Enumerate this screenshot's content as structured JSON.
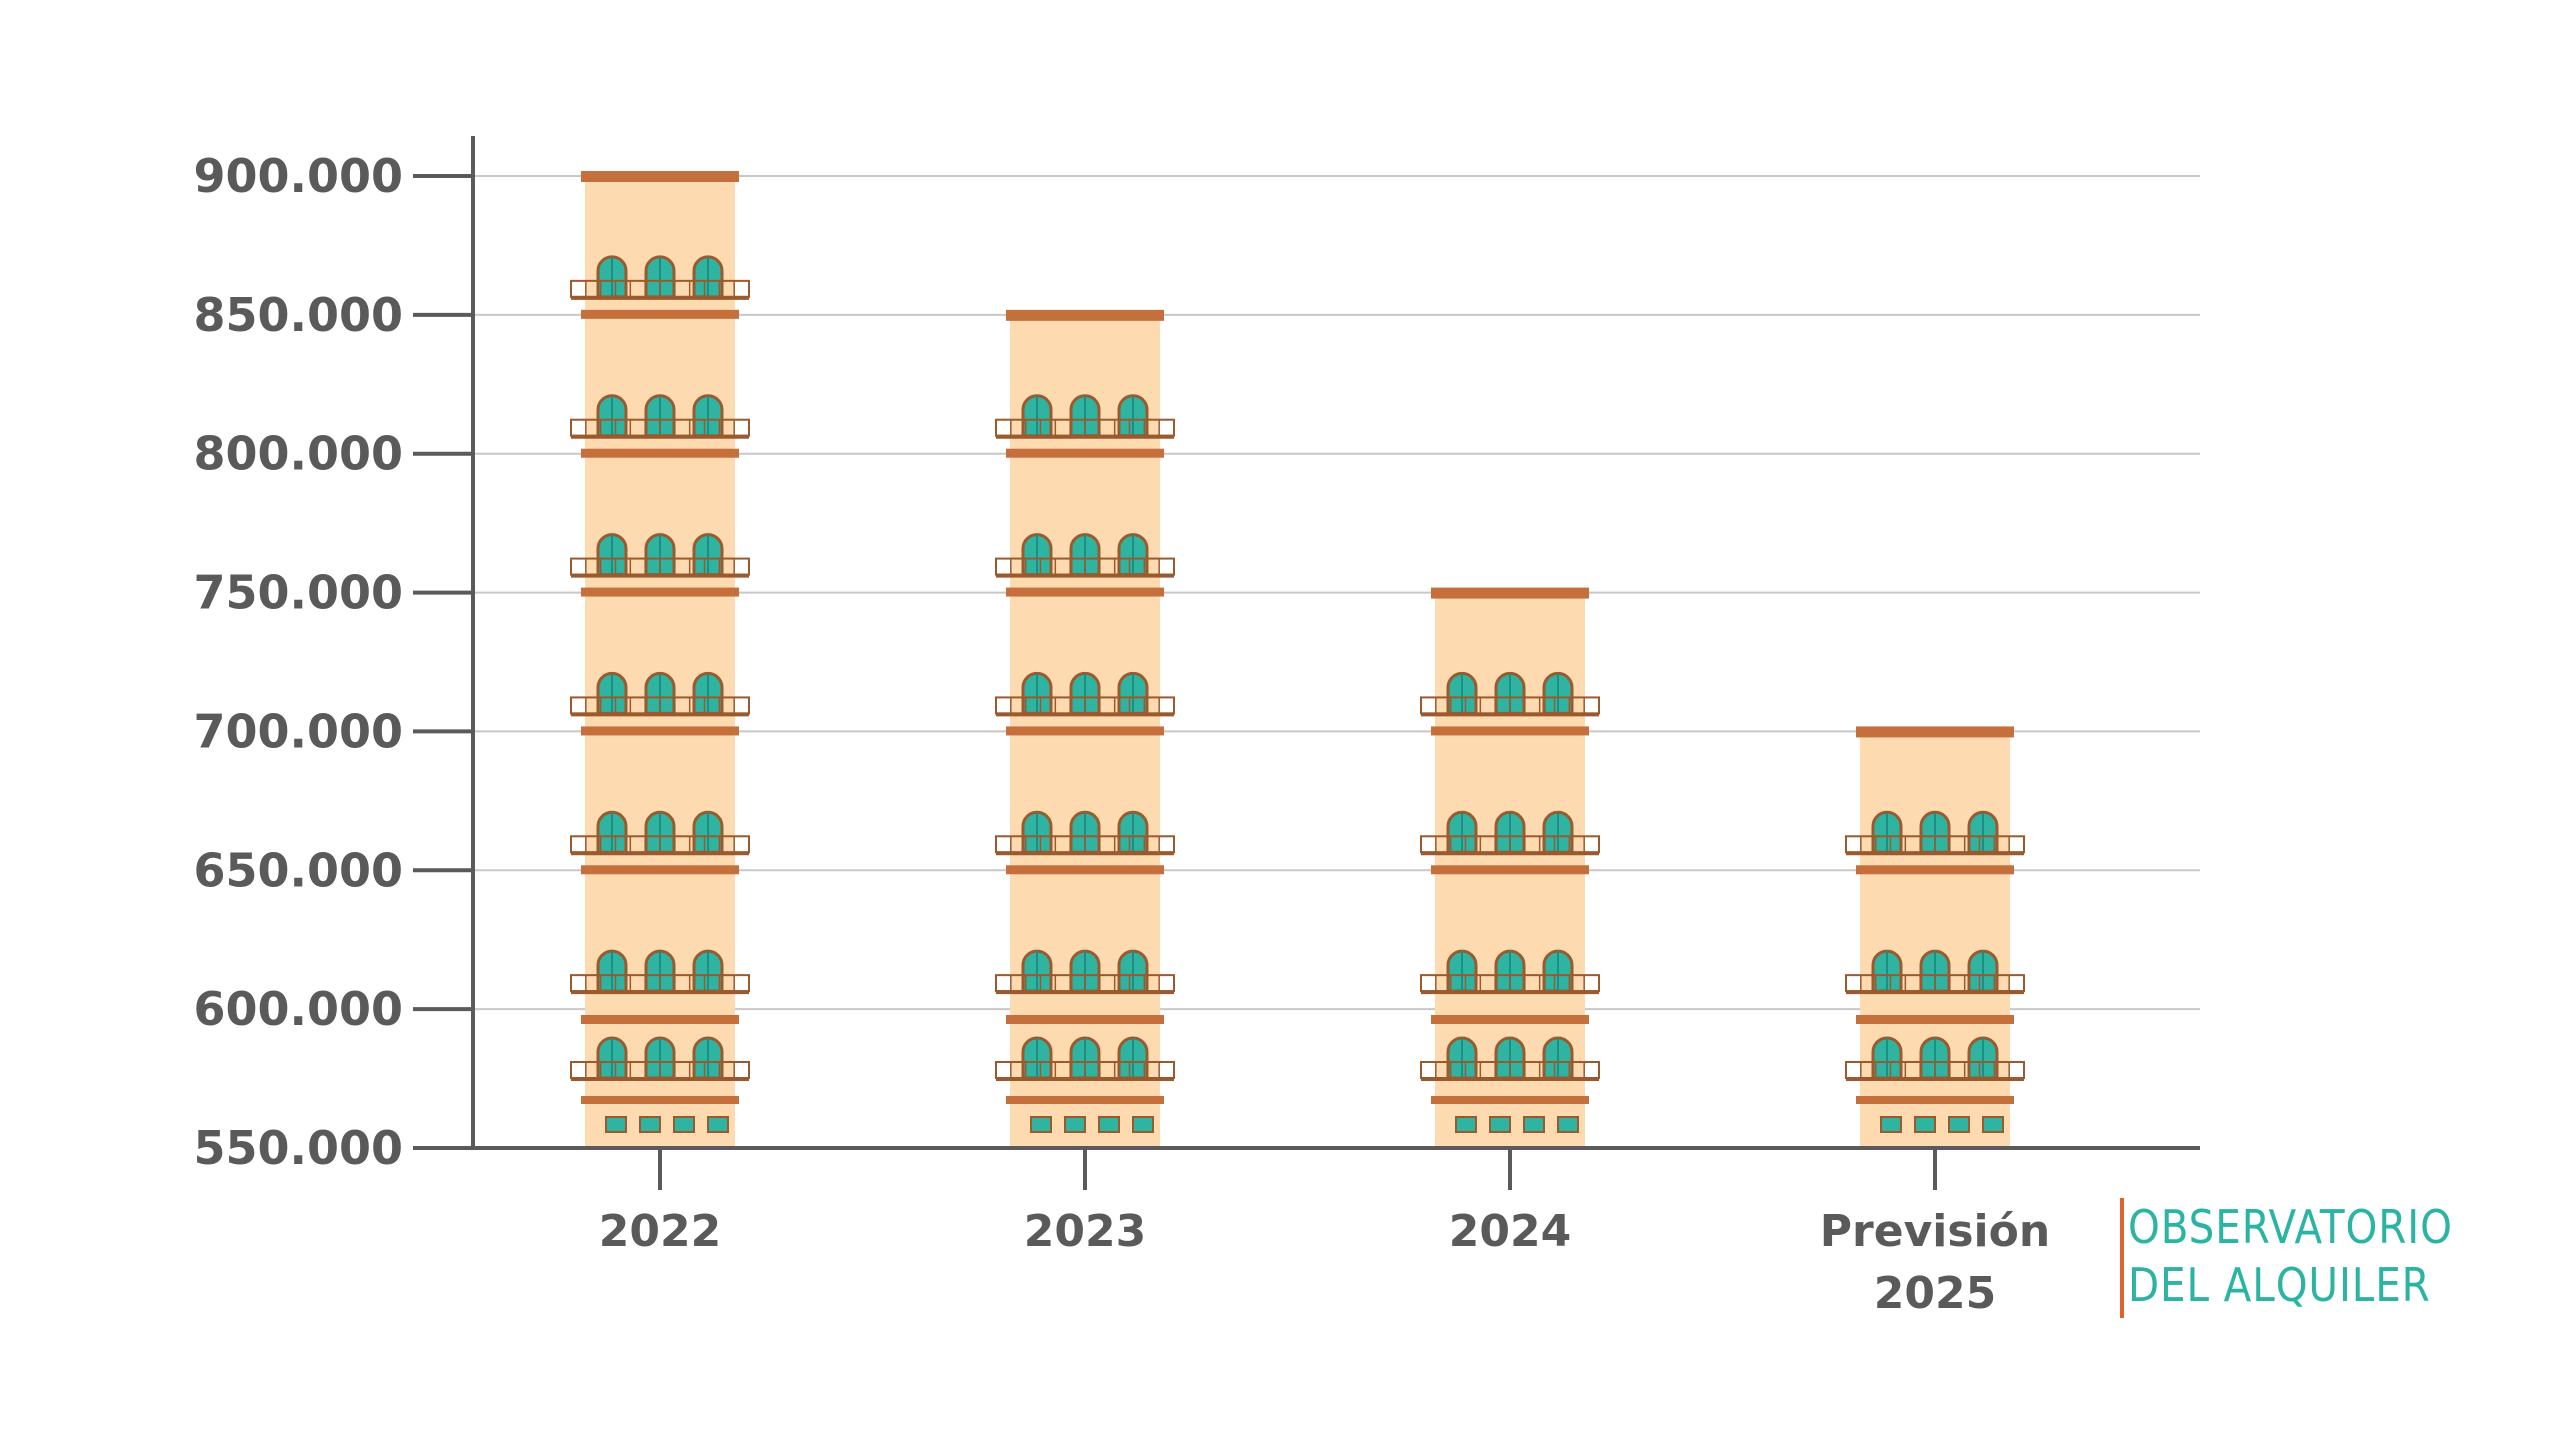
{
  "chart_data": {
    "type": "bar",
    "categories": [
      "2022",
      "2023",
      "2024",
      "Previsión 2025"
    ],
    "values": [
      900000,
      850000,
      750000,
      700000
    ],
    "ylim": [
      550000,
      900000
    ],
    "yticks": [
      550000,
      600000,
      650000,
      700000,
      750000,
      800000,
      850000,
      900000
    ],
    "ytick_labels": [
      "550.000",
      "600.000",
      "650.000",
      "700.000",
      "750.000",
      "800.000",
      "850.000",
      "900.000"
    ],
    "xtick_labels": [
      [
        "2022"
      ],
      [
        "2023"
      ],
      [
        "2024"
      ],
      [
        "Previsión",
        "2025"
      ]
    ],
    "title": "",
    "xlabel": "",
    "ylabel": "",
    "grid": true,
    "legend": "none"
  },
  "logo": {
    "line1": "OBSERVATORIO",
    "line2": "DEL ALQUILER"
  },
  "colors": {
    "building_body": "#fddab0",
    "building_cornice": "#c5703c",
    "window_glass": "#2fb4a2",
    "window_frame": "#9a5a2e",
    "axis": "#5a5a5a",
    "grid": "#c8c8c8",
    "logo_text": "#2bb3a4",
    "logo_bar": "#d9662f"
  }
}
